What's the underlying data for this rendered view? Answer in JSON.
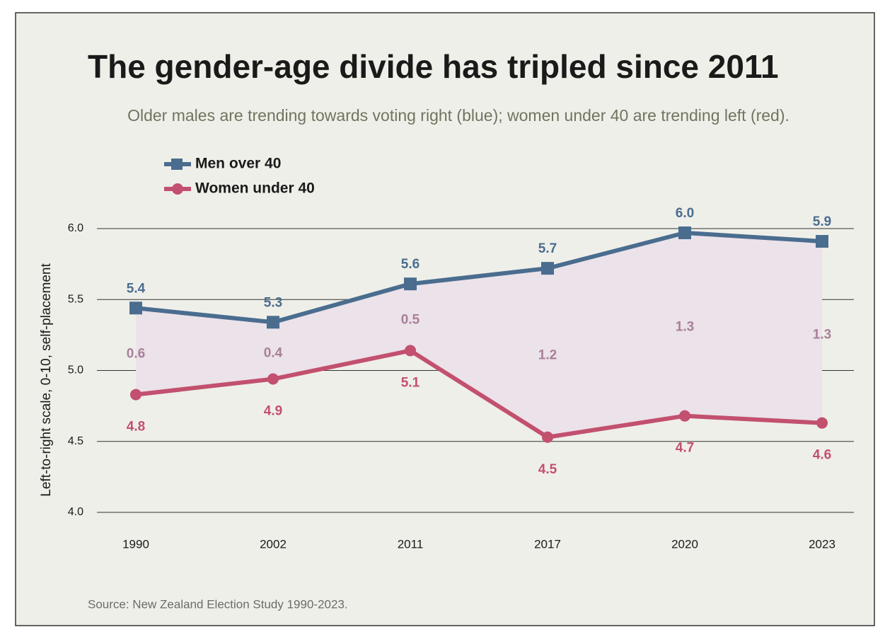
{
  "chart_data": {
    "type": "line",
    "title": "The gender-age divide has tripled since 2011",
    "subtitle": "Older males are trending towards voting right (blue); women under 40 are trending left (red).",
    "y_label": "Left-to-right scale, 0-10, self-placement",
    "source": "Source: New Zealand Election Study 1990-2023.",
    "categories": [
      "1990",
      "2002",
      "2011",
      "2017",
      "2020",
      "2023"
    ],
    "series": [
      {
        "name": "Men over 40",
        "color": "#4a6d8f",
        "marker": "square",
        "values": [
          5.44,
          5.34,
          5.61,
          5.72,
          5.97,
          5.91
        ],
        "value_labels": [
          "5.4",
          "5.3",
          "5.6",
          "5.7",
          "6.0",
          "5.9"
        ]
      },
      {
        "name": "Women under 40",
        "color": "#c2506e",
        "marker": "circle",
        "values": [
          4.83,
          4.94,
          5.14,
          4.53,
          4.68,
          4.63
        ],
        "value_labels": [
          "4.8",
          "4.9",
          "5.1",
          "4.5",
          "4.7",
          "4.6"
        ]
      }
    ],
    "gap_labels": [
      "0.6",
      "0.4",
      "0.5",
      "1.2",
      "1.3",
      "1.3"
    ],
    "gap_color": "#a97f99",
    "area_color": "#ece2e9",
    "ylim": [
      4.0,
      6.0
    ],
    "yticks": [
      {
        "value": 4,
        "label": "4.0"
      },
      {
        "value": 4.5,
        "label": "4.5"
      },
      {
        "value": 5,
        "label": "5.0"
      },
      {
        "value": 5.5,
        "label": "5.5"
      },
      {
        "value": 6,
        "label": "6.0"
      }
    ],
    "grid": true,
    "legend": "top-left"
  }
}
